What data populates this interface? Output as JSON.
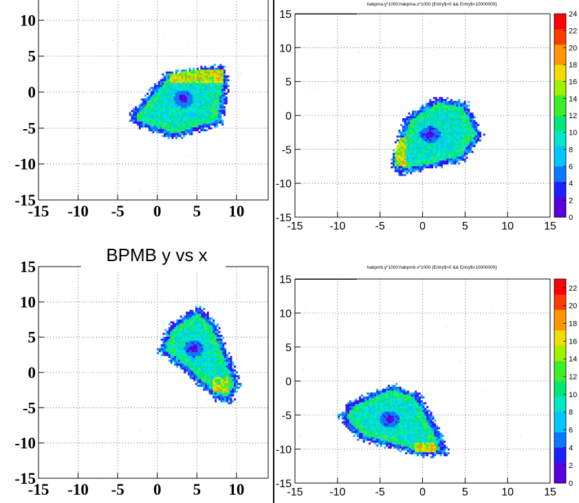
{
  "chart_data": [
    {
      "id": "top-left",
      "type": "heatmap",
      "title": "",
      "xlabel": "",
      "ylabel": "",
      "xlim": [
        -15,
        14
      ],
      "ylim": [
        -15,
        13
      ],
      "xticks": [
        -15,
        -10,
        -5,
        0,
        5,
        10
      ],
      "yticks": [
        -15,
        -10,
        -5,
        0,
        5,
        10
      ],
      "grid": true,
      "blob": {
        "center": [
          2.7,
          -1.0
        ],
        "shape": "rounded-triangle",
        "vertices": [
          [
            -3.4,
            -3.0
          ],
          [
            1.0,
            2.6
          ],
          [
            8.2,
            3.8
          ],
          [
            8.8,
            1.8
          ],
          [
            7.9,
            -4.2
          ],
          [
            2.1,
            -6.2
          ],
          [
            -3.2,
            -4.2
          ]
        ],
        "hotspot_region": [
          [
            1.5,
            3.2
          ],
          [
            8.3,
            1.5
          ]
        ],
        "hole": [
          3.2,
          -0.8
        ]
      }
    },
    {
      "id": "top-right",
      "type": "heatmap",
      "title": "habpma.y*1000:habpma.x*1000 {Entry$>0 && Entry$<10000000}",
      "xlabel": "",
      "ylabel": "",
      "xlim": [
        -15,
        15
      ],
      "ylim": [
        -15,
        15
      ],
      "xticks": [
        -15,
        -10,
        -5,
        0,
        5,
        10,
        15
      ],
      "yticks": [
        -15,
        -10,
        -5,
        0,
        5,
        10,
        15
      ],
      "grid": true,
      "zlim": [
        0,
        24
      ],
      "zticks": [
        0,
        2,
        4,
        6,
        8,
        10,
        12,
        14,
        16,
        18,
        20,
        22,
        24
      ],
      "blob": {
        "center": [
          1.5,
          -2.0
        ],
        "shape": "rounded",
        "vertices": [
          [
            -3.8,
            -7.0
          ],
          [
            -2.0,
            -0.2
          ],
          [
            1.5,
            2.6
          ],
          [
            5.0,
            2.0
          ],
          [
            6.8,
            -2.8
          ],
          [
            4.6,
            -6.5
          ],
          [
            -2.6,
            -8.4
          ]
        ],
        "hotspot_region": [
          [
            -3.5,
            -7.5
          ],
          [
            -2.0,
            -3.0
          ]
        ],
        "hole": [
          0.8,
          -2.7
        ]
      }
    },
    {
      "id": "bottom-left",
      "type": "heatmap",
      "title": "BPMB y vs x",
      "xlabel": "",
      "ylabel": "",
      "xlim": [
        -15,
        14
      ],
      "ylim": [
        -15,
        15
      ],
      "xticks": [
        -15,
        -10,
        -5,
        0,
        5,
        10
      ],
      "yticks": [
        -15,
        -10,
        -5,
        0,
        5,
        10,
        15
      ],
      "grid": true,
      "blob": {
        "center": [
          5.5,
          2.5
        ],
        "shape": "irregular",
        "vertices": [
          [
            0.1,
            3.2
          ],
          [
            1.5,
            6.8
          ],
          [
            5.2,
            9.3
          ],
          [
            7.2,
            7.0
          ],
          [
            10.2,
            -1.5
          ],
          [
            9.2,
            -3.9
          ],
          [
            7.3,
            -3.6
          ],
          [
            2.6,
            1.2
          ]
        ],
        "hotspot_region": [
          [
            6.8,
            -0.5
          ],
          [
            8.8,
            -2.8
          ]
        ],
        "hole": [
          4.5,
          3.5
        ]
      }
    },
    {
      "id": "bottom-right",
      "type": "heatmap",
      "title": "habpmb.y*1000:habpmb.x*1000 {Entry$>0 && Entry$<10000000}",
      "xlabel": "",
      "ylabel": "",
      "xlim": [
        -15,
        15
      ],
      "ylim": [
        -15,
        15
      ],
      "xticks": [
        -15,
        -10,
        -5,
        0,
        5,
        10,
        15
      ],
      "yticks": [
        -15,
        -10,
        -5,
        0,
        5,
        10,
        15
      ],
      "grid": true,
      "zlim": [
        0,
        23
      ],
      "zticks": [
        0,
        2,
        4,
        6,
        8,
        10,
        12,
        14,
        16,
        18,
        20,
        22
      ],
      "blob": {
        "center": [
          -3.5,
          -6.5
        ],
        "shape": "irregular",
        "vertices": [
          [
            -9.8,
            -5.2
          ],
          [
            -8.5,
            -3.0
          ],
          [
            -3.5,
            -0.4
          ],
          [
            -0.5,
            -2.0
          ],
          [
            1.8,
            -7.5
          ],
          [
            2.8,
            -10.5
          ],
          [
            0.0,
            -10.8
          ],
          [
            -7.5,
            -8.3
          ]
        ],
        "hotspot_region": [
          [
            -1.0,
            -9.0
          ],
          [
            1.5,
            -10.2
          ]
        ],
        "hole": [
          -4.0,
          -5.5
        ]
      }
    }
  ]
}
